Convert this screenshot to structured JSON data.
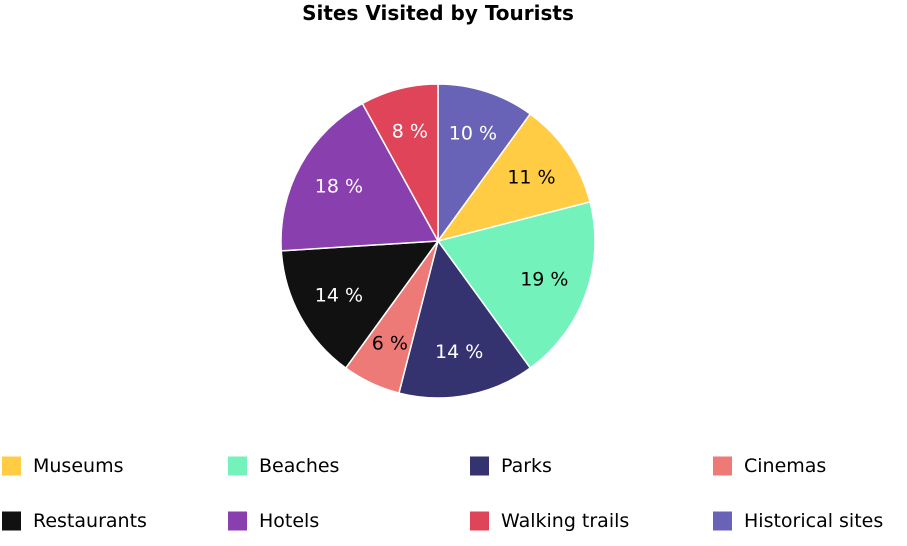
{
  "chart_data": {
    "type": "pie",
    "title": "Sites Visited by Tourists",
    "categories": [
      "Historical sites",
      "Museums",
      "Beaches",
      "Parks",
      "Cinemas",
      "Restaurants",
      "Hotels",
      "Walking trails"
    ],
    "values": [
      10,
      11,
      19,
      14,
      6,
      14,
      18,
      8
    ],
    "labels": [
      "10 %",
      "11 %",
      "19 %",
      "14 %",
      "6 %",
      "14 %",
      "18 %",
      "8 %"
    ],
    "colors": [
      "#6863b6",
      "#ffcc44",
      "#74f2bb",
      "#34326f",
      "#ee7a77",
      "#111111",
      "#8a3fae",
      "#e04459"
    ],
    "label_colors": [
      "#ffffff",
      "#000000",
      "#000000",
      "#ffffff",
      "#000000",
      "#ffffff",
      "#ffffff",
      "#ffffff"
    ],
    "start_angle_deg": 0,
    "direction": "clockwise",
    "legend": {
      "placement": "bottom",
      "items": [
        {
          "label": "Museums",
          "color": "#ffcc44"
        },
        {
          "label": "Beaches",
          "color": "#74f2bb"
        },
        {
          "label": "Parks",
          "color": "#34326f"
        },
        {
          "label": "Cinemas",
          "color": "#ee7a77"
        },
        {
          "label": "Restaurants",
          "color": "#111111"
        },
        {
          "label": "Hotels",
          "color": "#8a3fae"
        },
        {
          "label": "Walking trails",
          "color": "#e04459"
        },
        {
          "label": "Historical sites",
          "color": "#6863b6"
        }
      ]
    }
  }
}
